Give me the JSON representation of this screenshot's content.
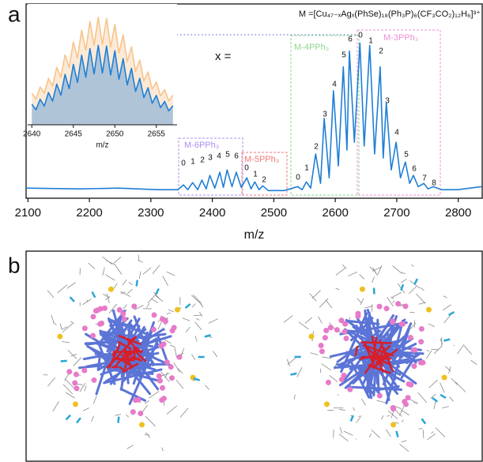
{
  "panel_labels": [
    "a",
    "b"
  ],
  "chart_data": [
    {
      "type": "line",
      "xlabel": "m/z",
      "formula": "M =[Cu₄₇₋ₓAgₓ(PhSe)₁₈(Ph₃P)₆(CF₃CO₂)₁₂H₆]³⁺",
      "annotation": "x =",
      "xlim": [
        2097,
        2839
      ],
      "ylim": [
        -4,
        123
      ],
      "xticks": [
        2100,
        2200,
        2300,
        2400,
        2500,
        2600,
        2700,
        2800
      ],
      "grid": false,
      "x": [
        2097,
        2183,
        2247,
        2312,
        2344,
        2353,
        2360,
        2368,
        2376,
        2383,
        2390,
        2396,
        2404,
        2412,
        2418,
        2424,
        2432,
        2439,
        2447,
        2456,
        2463,
        2469,
        2476,
        2482,
        2491,
        2517,
        2539,
        2546,
        2553,
        2560,
        2568,
        2576,
        2582,
        2590,
        2597,
        2605,
        2613,
        2619,
        2623,
        2631,
        2640,
        2647,
        2656,
        2664,
        2673,
        2678,
        2683,
        2691,
        2699,
        2706,
        2714,
        2721,
        2727,
        2735,
        2744,
        2751,
        2759,
        2773,
        2799,
        2838
      ],
      "series": [
        {
          "color": "#1f7fd6",
          "values": [
            2.6,
            2.1,
            2.6,
            1.6,
            1.6,
            4.7,
            1.6,
            6.2,
            1.6,
            7.8,
            2.1,
            10.9,
            2.6,
            13.0,
            3.1,
            14.5,
            3.6,
            13.0,
            3.1,
            9.3,
            2.1,
            6.7,
            1.6,
            4.1,
            1.0,
            1.0,
            3.6,
            1.6,
            6.7,
            2.6,
            24.9,
            5.7,
            48.2,
            9.3,
            66.3,
            17.1,
            81.9,
            27.5,
            92.2,
            32.6,
            97.4,
            30.1,
            95.9,
            24.9,
            81.9,
            22.3,
            58.5,
            14.5,
            32.6,
            9.3,
            19.7,
            5.7,
            10.9,
            3.6,
            5.7,
            2.1,
            3.6,
            1.6,
            1.6,
            3.6
          ]
        }
      ],
      "peak_groups": [
        {
          "name": "M-6PPh₃",
          "color": "#b08cf0",
          "peak_labels": [
            "0",
            "1",
            "2",
            "3",
            "4",
            "5",
            "6"
          ]
        },
        {
          "name": "M-5PPh₃",
          "color": "#f07a7a",
          "peak_labels": [
            "0",
            "1",
            "2"
          ]
        },
        {
          "name": "M-4PPh₃",
          "color": "#8fd68f",
          "peak_labels": [
            "0",
            "1",
            "2",
            "3",
            "4",
            "5",
            "6"
          ]
        },
        {
          "name": "M-3PPh₃",
          "color": "#f08fd8",
          "peak_labels": [
            "0",
            "1",
            "2",
            "3",
            "4",
            "5",
            "6",
            "7",
            "8"
          ]
        }
      ]
    },
    {
      "type": "line",
      "xlabel": "m/z",
      "xlim": [
        2639.5,
        2657.5
      ],
      "ylim": [
        0,
        110
      ],
      "xticks": [
        2640,
        2645,
        2650,
        2655
      ],
      "x": [
        2640,
        2640.5,
        2641,
        2641.5,
        2642,
        2642.5,
        2643,
        2643.5,
        2644,
        2644.5,
        2645,
        2645.5,
        2646,
        2646.5,
        2647,
        2647.5,
        2648,
        2648.5,
        2649,
        2649.5,
        2650,
        2650.5,
        2651,
        2651.5,
        2652,
        2652.5,
        2653,
        2653.5,
        2654,
        2654.5,
        2655,
        2655.5,
        2656,
        2656.5,
        2657
      ],
      "series": [
        {
          "color": "#f7c48c",
          "values": [
            29.3,
            24.0,
            35.1,
            29.2,
            43.1,
            36.0,
            53.3,
            44.2,
            64.9,
            53.2,
            77.0,
            62.0,
            87.8,
            69.2,
            95.9,
            73.8,
            99.8,
            74.9,
            98.8,
            72.4,
            93.1,
            66.6,
            83.7,
            58.6,
            72.2,
            49.6,
            60.1,
            40.8,
            49.0,
            33.1,
            39.7,
            26.9,
            32.6,
            22.3,
            27.5
          ]
        },
        {
          "color": "#1f7fd6",
          "values": [
            19.2,
            14.0,
            23.7,
            17.4,
            29.9,
            22.0,
            37.8,
            27.5,
            46.8,
            33.5,
            56.1,
            39.3,
            64.6,
            44.2,
            70.8,
            47.2,
            73.8,
            48.0,
            73.1,
            46.2,
            68.7,
            42.4,
            61.4,
            37.0,
            52.4,
            31.0,
            43.1,
            25.2,
            34.4,
            20.0,
            27.3,
            15.9,
            21.7,
            12.9,
            17.8
          ]
        }
      ]
    }
  ]
}
